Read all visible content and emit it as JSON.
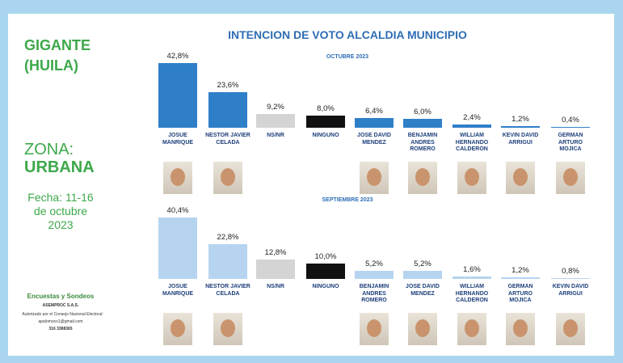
{
  "sidebar": {
    "place": "GIGANTE\n(HUILA)",
    "zone_label": "ZONA:",
    "zone": "URBANA",
    "date": "Fecha: 11-16\nde octubre\n2023",
    "brand": "Encuestas y Sondeos",
    "company": "ASEMPROC S.A.S.",
    "authorized": "Autorizado por el Consejo Nacional Electoral",
    "email": "apalomoco1@gmail.com",
    "phone": "316 3388365"
  },
  "title": "INTENCION DE VOTO ALCALDIA MUNICIPIO",
  "chart_data": [
    {
      "type": "bar",
      "subtitle": "OCTUBRE 2023",
      "categories": [
        "JOSUE\nMANRIQUE",
        "NESTOR JAVIER\nCELADA",
        "NS/NR",
        "NINGUNO",
        "JOSE DAVID\nMENDEZ",
        "BENJAMIN\nANDRES\nROMERO",
        "WILLIAM\nHERNANDO\nCALDERON",
        "KEVIN DAVID\nARRIGUI",
        "GERMAN\nARTURO\nMOJICA"
      ],
      "values": [
        42.8,
        23.6,
        9.2,
        8.0,
        6.4,
        6.0,
        2.4,
        1.2,
        0.4
      ],
      "value_labels": [
        "42,8%",
        "23,6%",
        "9,2%",
        "8,0%",
        "6,4%",
        "6,0%",
        "2,4%",
        "1,2%",
        "0,4%"
      ],
      "colors": [
        "#2f7fc8",
        "#2f7fc8",
        "#d4d4d4",
        "#111111",
        "#2f7fc8",
        "#2f7fc8",
        "#2f7fc8",
        "#2f7fc8",
        "#2f7fc8"
      ]
    },
    {
      "type": "bar",
      "subtitle": "SEPTIEMBRE 2023",
      "categories": [
        "JOSUE\nMANRIQUE",
        "NESTOR JAVIER\nCELADA",
        "NS/NR",
        "NINGUNO",
        "BENJAMIN\nANDRES\nROMERO",
        "JOSE DAVID\nMENDEZ",
        "WILLIAM\nHERNANDO\nCALDERON",
        "GERMAN\nARTURO\nMOJICA",
        "KEVIN DAVID\nARRIGUI"
      ],
      "values": [
        40.4,
        22.8,
        12.8,
        10.0,
        5.2,
        5.2,
        1.6,
        1.2,
        0.8
      ],
      "value_labels": [
        "40,4%",
        "22,8%",
        "12,8%",
        "10,0%",
        "5,2%",
        "5,2%",
        "1,6%",
        "1,2%",
        "0,8%"
      ],
      "colors": [
        "#b6d4f0",
        "#b6d4f0",
        "#d4d4d4",
        "#111111",
        "#b6d4f0",
        "#b6d4f0",
        "#b6d4f0",
        "#b6d4f0",
        "#b6d4f0"
      ]
    }
  ]
}
